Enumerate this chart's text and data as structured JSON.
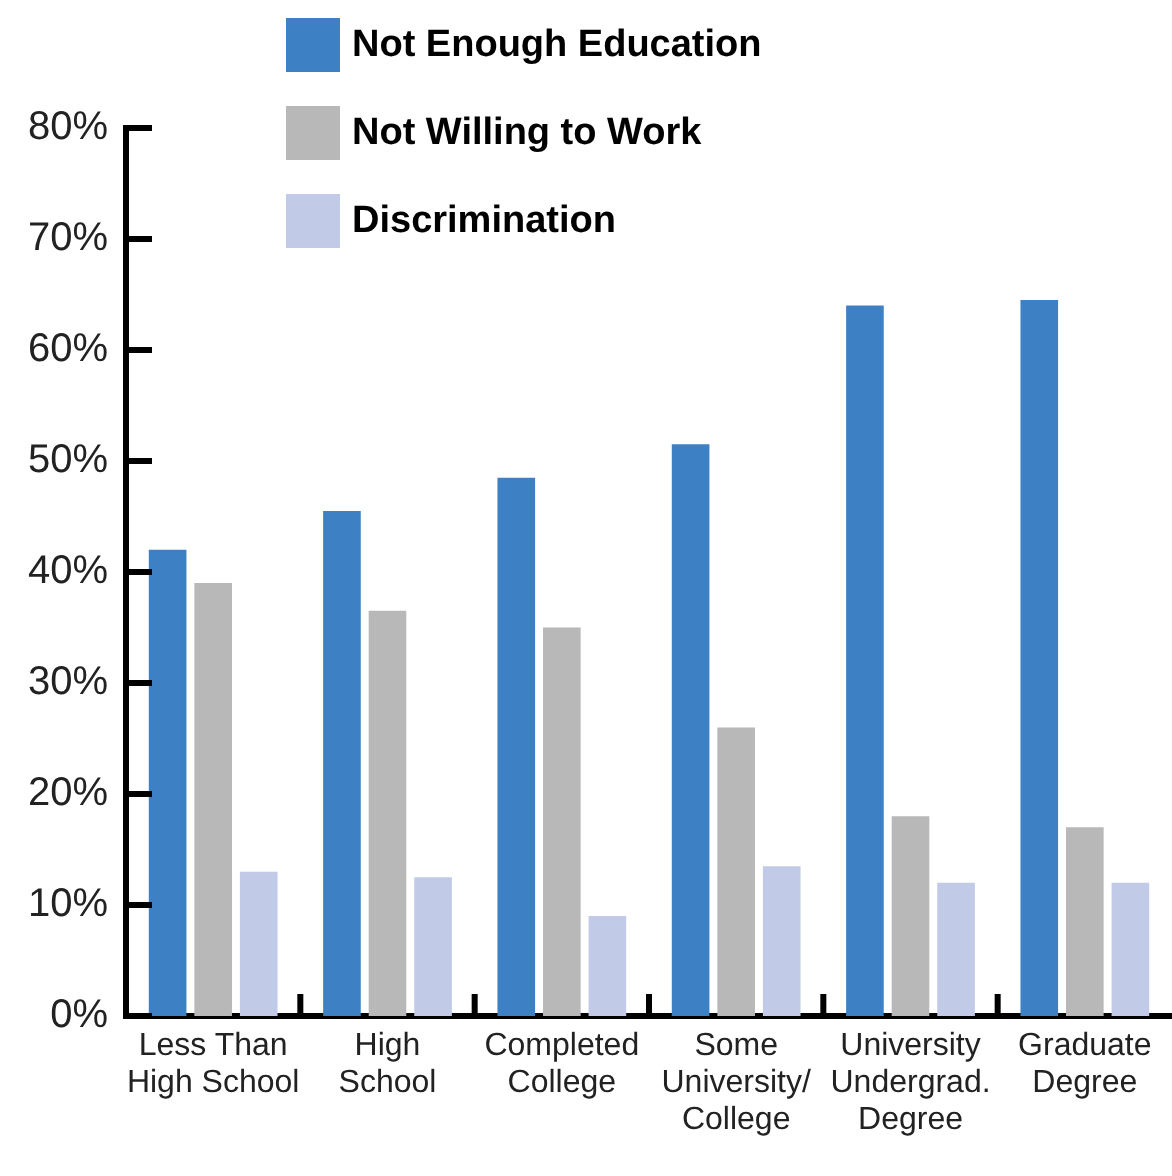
{
  "chart_data": {
    "type": "bar",
    "categories": [
      "Less Than\nHigh School",
      "High\nSchool",
      "Completed\nCollege",
      "Some\nUniversity/\nCollege",
      "University\nUndergrad.\nDegree",
      "Graduate\nDegree"
    ],
    "series": [
      {
        "name": "Not Enough Education",
        "color": "#3d80c4",
        "values": [
          42,
          45.5,
          48.5,
          51.5,
          64,
          64.5
        ]
      },
      {
        "name": "Not Willing to Work",
        "color": "#b8b8b8",
        "values": [
          39,
          36.5,
          35,
          26,
          18,
          17
        ]
      },
      {
        "name": "Discrimination",
        "color": "#c1cbe7",
        "values": [
          13,
          12.5,
          9,
          13.5,
          12,
          12
        ]
      }
    ],
    "ylim": [
      0,
      80
    ],
    "yticks": [
      {
        "value": 0,
        "label": "0%"
      },
      {
        "value": 10,
        "label": "10%"
      },
      {
        "value": 20,
        "label": "20%"
      },
      {
        "value": 30,
        "label": "30%"
      },
      {
        "value": 40,
        "label": "40%"
      },
      {
        "value": 50,
        "label": "50%"
      },
      {
        "value": 60,
        "label": "60%"
      },
      {
        "value": 70,
        "label": "70%"
      },
      {
        "value": 80,
        "label": "80%"
      }
    ],
    "legend": "top"
  }
}
